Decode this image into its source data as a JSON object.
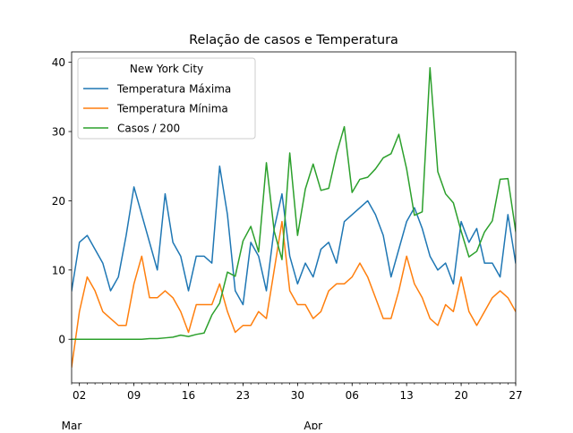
{
  "chart_data": {
    "type": "line",
    "title": "Relação de casos e Temperatura",
    "xlabel": "",
    "ylabel": "",
    "x_start": "2020-03-01",
    "x_end": "2020-04-27",
    "xlim": [
      "2020-03-01",
      "2020-04-27"
    ],
    "ylim": [
      -6.3,
      41.5
    ],
    "grid": false,
    "x_ticks": [
      {
        "date": "2020-03-02",
        "label": "02"
      },
      {
        "date": "2020-03-09",
        "label": "09"
      },
      {
        "date": "2020-03-16",
        "label": "16"
      },
      {
        "date": "2020-03-23",
        "label": "23"
      },
      {
        "date": "2020-03-30",
        "label": "30"
      },
      {
        "date": "2020-04-06",
        "label": "06"
      },
      {
        "date": "2020-04-13",
        "label": "13"
      },
      {
        "date": "2020-04-20",
        "label": "20"
      },
      {
        "date": "2020-04-27",
        "label": "27"
      }
    ],
    "x_month_labels": [
      {
        "date": "2020-03-01",
        "label": "Mar"
      },
      {
        "date": "2020-04-01",
        "label": "Apr"
      }
    ],
    "y_ticks": [
      0,
      10,
      20,
      30,
      40
    ],
    "legend": {
      "title": "New York City",
      "position": "upper-left"
    },
    "series": [
      {
        "name": "Temperatura Máxima",
        "color": "#1f77b4",
        "values": [
          7,
          14,
          15,
          13,
          11,
          7,
          9,
          15,
          22,
          18,
          14,
          10,
          21,
          14,
          12,
          7,
          12,
          12,
          11,
          25,
          18,
          7,
          5,
          14,
          12,
          7,
          16,
          21,
          12,
          8,
          11,
          9,
          13,
          14,
          11,
          17,
          18,
          19,
          20,
          18,
          15,
          9,
          13,
          17,
          19,
          16,
          12,
          10,
          11,
          8,
          17,
          14,
          16,
          11,
          11,
          9,
          18,
          11,
          10
        ]
      },
      {
        "name": "Temperatura Mínima",
        "color": "#ff7f0e",
        "values": [
          -4,
          4,
          9,
          7,
          4,
          3,
          2,
          2,
          8,
          12,
          6,
          6,
          7,
          6,
          4,
          1,
          5,
          5,
          5,
          8,
          4,
          1,
          2,
          2,
          4,
          3,
          10,
          17,
          7,
          5,
          5,
          3,
          4,
          7,
          8,
          8,
          9,
          11,
          9,
          6,
          3,
          3,
          7,
          12,
          8,
          6,
          3,
          2,
          5,
          4,
          9,
          4,
          2,
          4,
          6,
          7,
          6,
          4,
          4
        ]
      },
      {
        "name": "Casos / 200",
        "color": "#2ca02c",
        "values": [
          0,
          0,
          0,
          0,
          0,
          0,
          0,
          0,
          0,
          0,
          0.1,
          0.1,
          0.2,
          0.3,
          0.6,
          0.4,
          0.7,
          0.9,
          3.5,
          5.2,
          9.7,
          9.1,
          14.2,
          16.3,
          12.6,
          25.5,
          15.6,
          11.5,
          26.9,
          15.0,
          21.7,
          25.3,
          21.5,
          21.8,
          26.8,
          30.7,
          21.2,
          23.1,
          23.4,
          24.6,
          26.2,
          26.8,
          29.6,
          24.6,
          17.9,
          18.4,
          39.2,
          24.2,
          21.0,
          19.7,
          15.6,
          11.9,
          12.7,
          15.5,
          17.1,
          23.1,
          23.2,
          15.6,
          11.2
        ]
      }
    ]
  }
}
